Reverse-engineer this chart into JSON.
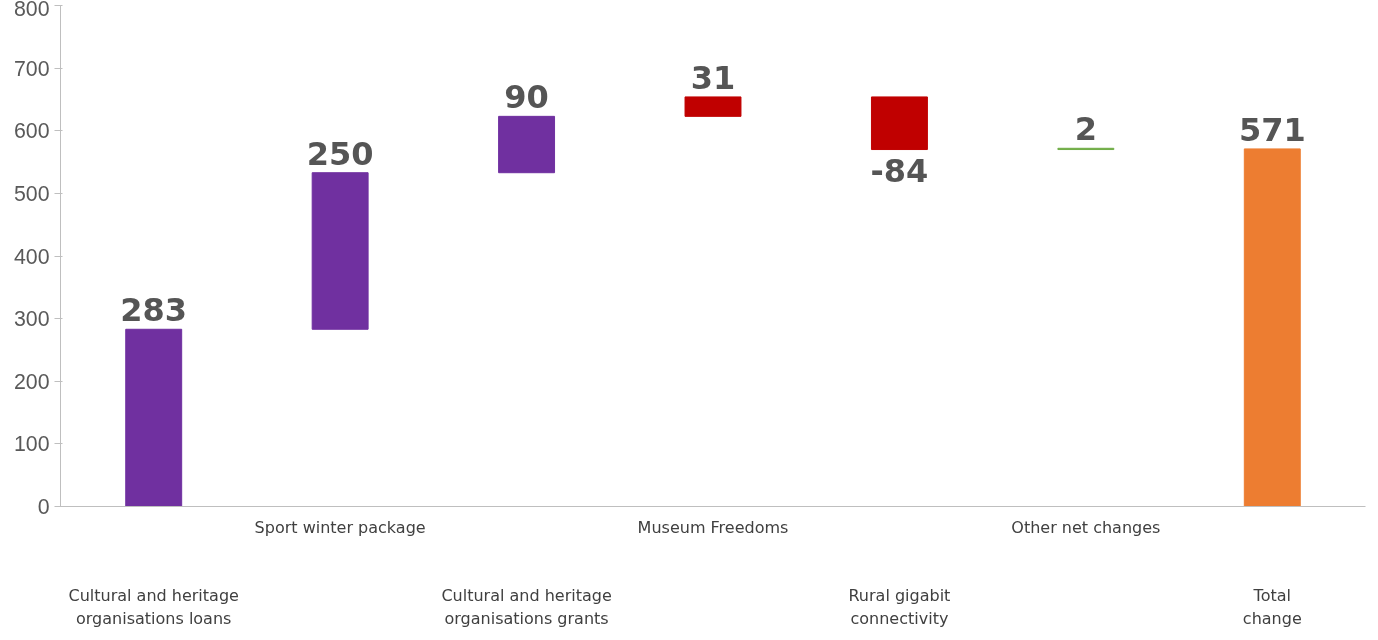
{
  "chart_data": {
    "type": "bar",
    "categories": [
      "Cultural and heritage\norganisations loans",
      "Sport winter package",
      "Cultural and heritage\norganisations grants",
      "Museum Freedoms",
      "Rural gigabit\nconnectivity",
      "Other net changes",
      "Total\nchange"
    ],
    "values": [
      283,
      250,
      90,
      31,
      -84,
      2,
      571
    ],
    "base": [
      0,
      283,
      533,
      623,
      654,
      570,
      0
    ],
    "colors": [
      "#7030a0",
      "#7030a0",
      "#7030a0",
      "#c00000",
      "#c00000",
      "#70ad47",
      "#ed7d31"
    ],
    "ylim": [
      0,
      800
    ],
    "yticks": [
      0,
      100,
      200,
      300,
      400,
      500,
      600,
      700,
      800
    ],
    "grid": false,
    "data_labels": true
  }
}
